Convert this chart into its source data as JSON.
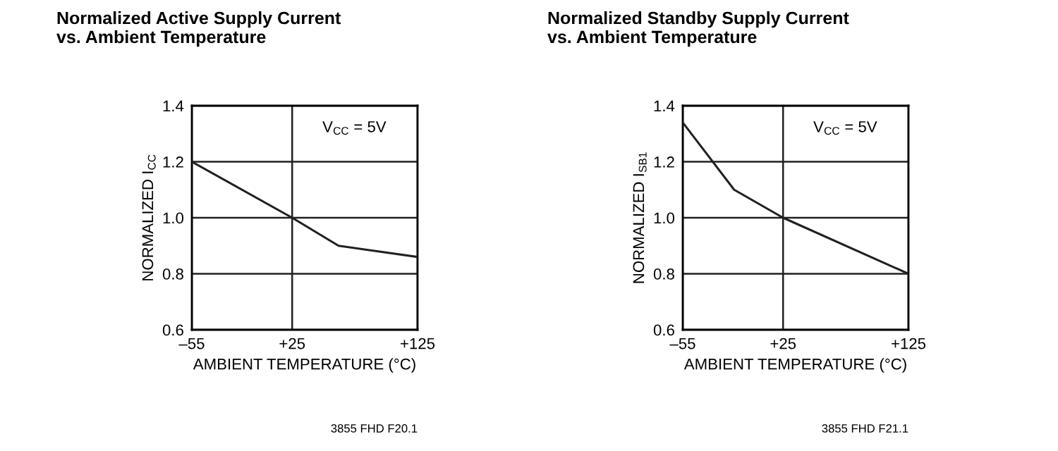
{
  "chart_data": [
    {
      "type": "line",
      "title": "Normalized Active Supply Current\nvs. Ambient Temperature",
      "xlabel": "AMBIENT TEMPERATURE (°C)",
      "ylabel": "NORMALIZED I$_{CC}$",
      "x": [
        -55,
        25,
        62,
        125
      ],
      "series": [
        {
          "color": "#231f20",
          "values": [
            1.2,
            1.0,
            0.9,
            0.86
          ]
        }
      ],
      "xlim": [
        -55,
        125
      ],
      "xticks": [
        {
          "value": -55,
          "label": "–55"
        },
        {
          "value": 25,
          "label": "+25"
        },
        {
          "value": 125,
          "label": "+125"
        }
      ],
      "ylim": [
        0.6,
        1.4
      ],
      "yticks": [
        {
          "value": 0.6,
          "label": "0.6"
        },
        {
          "value": 0.8,
          "label": "0.8"
        },
        {
          "value": 1.0,
          "label": "1.0"
        },
        {
          "value": 1.2,
          "label": "1.2"
        },
        {
          "value": 1.4,
          "label": "1.4"
        }
      ],
      "grid": true,
      "marker": "none",
      "line_style": "solid",
      "annotations": [
        "V$_{CC}$ = 5V",
        "3855 FHD F20.1"
      ]
    },
    {
      "type": "line",
      "title": "Normalized Standby Supply Current\nvs. Ambient Temperature",
      "xlabel": "AMBIENT TEMPERATURE (°C)",
      "ylabel": "NORMALIZED I$_{SB1}$",
      "x": [
        -55,
        -14,
        25,
        125
      ],
      "series": [
        {
          "color": "#231f20",
          "values": [
            1.34,
            1.1,
            1.0,
            0.8
          ]
        }
      ],
      "xlim": [
        -55,
        125
      ],
      "xticks": [
        {
          "value": -55,
          "label": "–55"
        },
        {
          "value": 25,
          "label": "+25"
        },
        {
          "value": 125,
          "label": "+125"
        }
      ],
      "ylim": [
        0.6,
        1.4
      ],
      "yticks": [
        {
          "value": 0.6,
          "label": "0.6"
        },
        {
          "value": 0.8,
          "label": "0.8"
        },
        {
          "value": 1.0,
          "label": "1.0"
        },
        {
          "value": 1.2,
          "label": "1.2"
        },
        {
          "value": 1.4,
          "label": "1.4"
        }
      ],
      "grid": true,
      "marker": "none",
      "line_style": "solid",
      "annotations": [
        "V$_{CC}$ = 5V",
        "3855 FHD F21.1"
      ]
    }
  ]
}
